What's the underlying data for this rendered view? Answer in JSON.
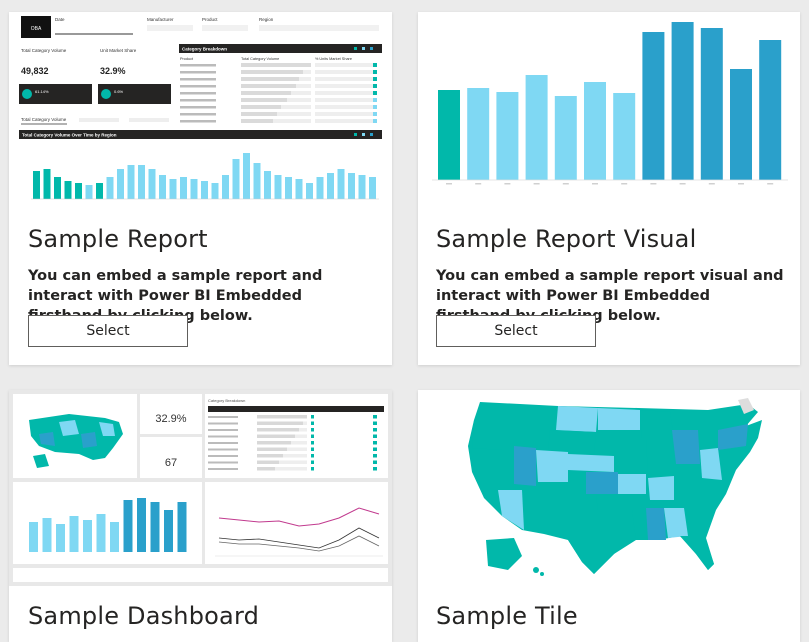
{
  "cards": [
    {
      "id": "report",
      "title": "Sample Report",
      "description": "You can embed a sample report and interact with Power BI Embedded firsthand by clicking below.",
      "button_label": "Select"
    },
    {
      "id": "visual",
      "title": "Sample Report Visual",
      "description": "You can embed a sample report visual and interact with Power BI Embedded firsthand by clicking below.",
      "button_label": "Select"
    },
    {
      "id": "dashboard",
      "title": "Sample Dashboard"
    },
    {
      "id": "tile",
      "title": "Sample Tile"
    }
  ],
  "report_thumb": {
    "logo": "OBA",
    "filters": [
      "Date",
      "Manufacturer",
      "Product",
      "Region"
    ],
    "kpi1_label": "Total Category Volume",
    "kpi1_value": "49,832",
    "kpi2_label": "Unit Market Share",
    "kpi2_value": "32.9%",
    "kpi1_badge": "61.14%",
    "kpi2_badge": "0.6%",
    "table_title": "Category Breakdown",
    "table_headers": [
      "Product",
      "Total Category Volume",
      "% Units Market Share"
    ],
    "bottom_title": "Total Category Volume Over Time by Region",
    "tabs": [
      "Total Category Volume"
    ]
  },
  "dashboard_thumb": {
    "kpi_value": "32.9%",
    "kpi_value2": "67",
    "table_title": "Category Breakdown"
  },
  "colors": {
    "teal": "#01b8aa",
    "light_blue": "#7fd8f3",
    "mid_blue": "#4ec1e8",
    "dark_blue": "#2aa0cb",
    "black_header": "#252423"
  },
  "visual_chart": {
    "type": "bar",
    "values": [
      90,
      92,
      88,
      105,
      84,
      98,
      87,
      148,
      158,
      152,
      111,
      140
    ],
    "colors": [
      "teal",
      "light_blue",
      "light_blue",
      "light_blue",
      "light_blue",
      "light_blue",
      "light_blue",
      "dark_blue",
      "dark_blue",
      "dark_blue",
      "dark_blue",
      "dark_blue"
    ]
  }
}
